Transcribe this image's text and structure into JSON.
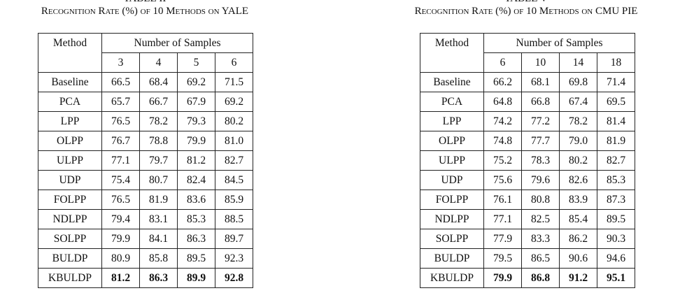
{
  "tables": [
    {
      "label": "TABLE II",
      "caption": "Recognition Rate (%) of 10 Methods on YALE",
      "header": {
        "method": "Method",
        "group": "Number of Samples",
        "samples": [
          "3",
          "4",
          "5",
          "6"
        ]
      },
      "rows": [
        [
          "Baseline",
          "66.5",
          "68.4",
          "69.2",
          "71.5"
        ],
        [
          "PCA",
          "65.7",
          "66.7",
          "67.9",
          "69.2"
        ],
        [
          "LPP",
          "76.5",
          "78.2",
          "79.3",
          "80.2"
        ],
        [
          "OLPP",
          "76.7",
          "78.8",
          "79.9",
          "81.0"
        ],
        [
          "ULPP",
          "77.1",
          "79.7",
          "81.2",
          "82.7"
        ],
        [
          "UDP",
          "75.4",
          "80.7",
          "82.4",
          "84.5"
        ],
        [
          "FOLPP",
          "76.5",
          "81.9",
          "83.6",
          "85.9"
        ],
        [
          "NDLPP",
          "79.4",
          "83.1",
          "85.3",
          "88.5"
        ],
        [
          "SOLPP",
          "79.9",
          "84.1",
          "86.3",
          "89.7"
        ],
        [
          "BULDP",
          "80.9",
          "85.8",
          "89.5",
          "92.3"
        ],
        [
          "KBULDP",
          "81.2",
          "86.3",
          "89.9",
          "92.8"
        ]
      ]
    },
    {
      "label": "TABLE V",
      "caption": "Recognition Rate (%) of 10 Methods on CMU PIE",
      "header": {
        "method": "Method",
        "group": "Number of Samples",
        "samples": [
          "6",
          "10",
          "14",
          "18"
        ]
      },
      "rows": [
        [
          "Baseline",
          "66.2",
          "68.1",
          "69.8",
          "71.4"
        ],
        [
          "PCA",
          "64.8",
          "66.8",
          "67.4",
          "69.5"
        ],
        [
          "LPP",
          "74.2",
          "77.2",
          "78.2",
          "81.4"
        ],
        [
          "OLPP",
          "74.8",
          "77.7",
          "79.0",
          "81.9"
        ],
        [
          "ULPP",
          "75.2",
          "78.3",
          "80.2",
          "82.7"
        ],
        [
          "UDP",
          "75.6",
          "79.6",
          "82.6",
          "85.3"
        ],
        [
          "FOLPP",
          "76.1",
          "80.8",
          "83.9",
          "87.3"
        ],
        [
          "NDLPP",
          "77.1",
          "82.5",
          "85.4",
          "89.5"
        ],
        [
          "SOLPP",
          "77.9",
          "83.3",
          "86.2",
          "90.3"
        ],
        [
          "BULDP",
          "79.5",
          "86.5",
          "90.6",
          "94.6"
        ],
        [
          "KBULDP",
          "79.9",
          "86.8",
          "91.2",
          "95.1"
        ]
      ]
    }
  ]
}
